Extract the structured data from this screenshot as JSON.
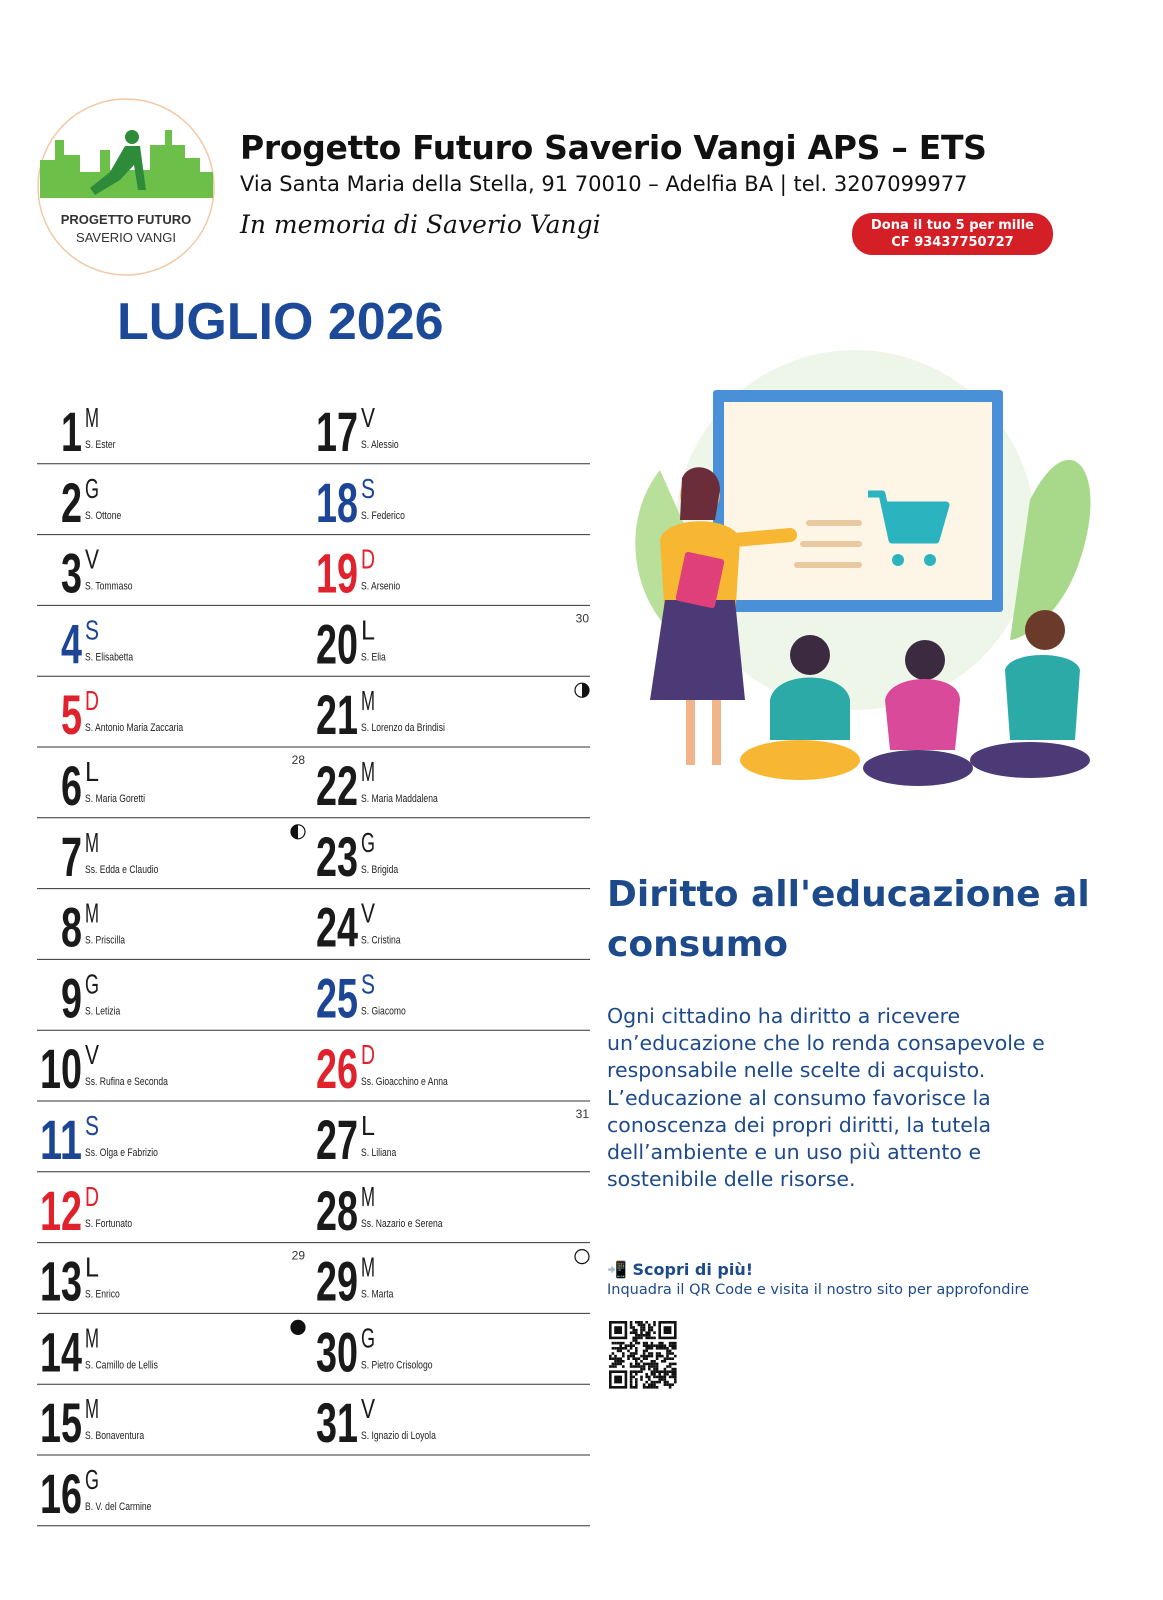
{
  "header": {
    "logo_lines": [
      "PROGETTO FUTURO",
      "SAVERIO VANGI"
    ],
    "org_name": "Progetto Futuro Saverio Vangi APS – ETS",
    "address": "Via Santa Maria della Stella, 91 70010 – Adelfia BA | tel. 3207099977",
    "memorial": "In memoria di Saverio Vangi",
    "badge": [
      "Dona il tuo 5 per mille",
      "CF 93437750727"
    ]
  },
  "month_title": "LUGLIO 2026",
  "days": [
    {
      "day": 1,
      "letter": "M",
      "saint": "S. Ester",
      "color": "#1a1a1a"
    },
    {
      "day": 2,
      "letter": "G",
      "saint": "S. Ottone",
      "color": "#1a1a1a"
    },
    {
      "day": 3,
      "letter": "V",
      "saint": "S. Tommaso",
      "color": "#1a1a1a"
    },
    {
      "day": 4,
      "letter": "S",
      "saint": "S. Elisabetta",
      "color": "#1c4596"
    },
    {
      "day": 5,
      "letter": "D",
      "saint": "S. Antonio Maria Zaccaria",
      "color": "#e0222c"
    },
    {
      "day": 6,
      "letter": "L",
      "saint": "S. Maria Goretti",
      "color": "#1a1a1a",
      "week": 28
    },
    {
      "day": 7,
      "letter": "M",
      "saint": "Ss. Edda e Claudio",
      "color": "#1a1a1a",
      "moon": "first-quarter"
    },
    {
      "day": 8,
      "letter": "M",
      "saint": "S. Priscilla",
      "color": "#1a1a1a"
    },
    {
      "day": 9,
      "letter": "G",
      "saint": "S. Letizia",
      "color": "#1a1a1a"
    },
    {
      "day": 10,
      "letter": "V",
      "saint": "Ss. Rufina e Seconda",
      "color": "#1a1a1a"
    },
    {
      "day": 11,
      "letter": "S",
      "saint": "Ss. Olga e Fabrizio",
      "color": "#1c4596"
    },
    {
      "day": 12,
      "letter": "D",
      "saint": "S. Fortunato",
      "color": "#e0222c"
    },
    {
      "day": 13,
      "letter": "L",
      "saint": "S. Enrico",
      "color": "#1a1a1a",
      "week": 29
    },
    {
      "day": 14,
      "letter": "M",
      "saint": "S. Camillo de Lellis",
      "color": "#1a1a1a",
      "moon": "new"
    },
    {
      "day": 15,
      "letter": "M",
      "saint": "S. Bonaventura",
      "color": "#1a1a1a"
    },
    {
      "day": 16,
      "letter": "G",
      "saint": "B. V. del Carmine",
      "color": "#1a1a1a"
    },
    {
      "day": 17,
      "letter": "V",
      "saint": "S. Alessio",
      "color": "#1a1a1a"
    },
    {
      "day": 18,
      "letter": "S",
      "saint": "S. Federico",
      "color": "#1c4596"
    },
    {
      "day": 19,
      "letter": "D",
      "saint": "S. Arsenio",
      "color": "#e0222c"
    },
    {
      "day": 20,
      "letter": "L",
      "saint": "S. Elia",
      "color": "#1a1a1a",
      "week": 30
    },
    {
      "day": 21,
      "letter": "M",
      "saint": "S. Lorenzo da Brindisi",
      "color": "#1a1a1a",
      "moon": "last-quarter"
    },
    {
      "day": 22,
      "letter": "M",
      "saint": "S. Maria Maddalena",
      "color": "#1a1a1a"
    },
    {
      "day": 23,
      "letter": "G",
      "saint": "S. Brigida",
      "color": "#1a1a1a"
    },
    {
      "day": 24,
      "letter": "V",
      "saint": "S. Cristina",
      "color": "#1a1a1a"
    },
    {
      "day": 25,
      "letter": "S",
      "saint": "S. Giacomo",
      "color": "#1c4596"
    },
    {
      "day": 26,
      "letter": "D",
      "saint": "Ss. Gioacchino e Anna",
      "color": "#e0222c"
    },
    {
      "day": 27,
      "letter": "L",
      "saint": "S. Liliana",
      "color": "#1a1a1a",
      "week": 31
    },
    {
      "day": 28,
      "letter": "M",
      "saint": "Ss. Nazario e Serena",
      "color": "#1a1a1a"
    },
    {
      "day": 29,
      "letter": "M",
      "saint": "S. Marta",
      "color": "#1a1a1a",
      "moon": "full"
    },
    {
      "day": 30,
      "letter": "G",
      "saint": "S. Pietro Crisologo",
      "color": "#1a1a1a"
    },
    {
      "day": 31,
      "letter": "V",
      "saint": "S. Ignazio di Loyola",
      "color": "#1a1a1a"
    }
  ],
  "article": {
    "title": "Diritto all'educazione al consumo",
    "paragraphs": [
      "Ogni cittadino ha diritto a ricevere un’educazione che lo renda consapevole e responsabile nelle scelte di acquisto.",
      "L’educazione al consumo favorisce la conoscenza dei propri diritti, la tutela dell’ambiente e un uso più attento e sostenibile delle risorse."
    ],
    "cta": "📲 Scopri di più!",
    "cta_sub": "Inquadra il QR Code e visita il nostro sito per approfondire"
  }
}
